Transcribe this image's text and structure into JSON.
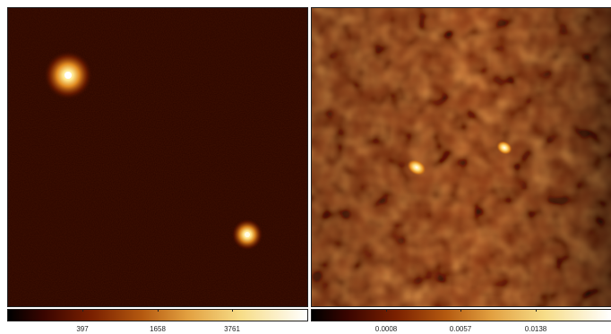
{
  "colormap": {
    "name": "afmhot-like",
    "stops": [
      "#000000",
      "#3a0500",
      "#7a2000",
      "#b55a10",
      "#e2a040",
      "#f7dd88",
      "#ffffff"
    ]
  },
  "left_panel": {
    "background": "#2a0500",
    "colorbar": {
      "ticks": [
        "397",
        "1658",
        "3761"
      ]
    }
  },
  "right_panel": {
    "background": "#8a3612",
    "colorbar": {
      "ticks": [
        "0.0008",
        "0.0057",
        "0.0138"
      ]
    }
  }
}
